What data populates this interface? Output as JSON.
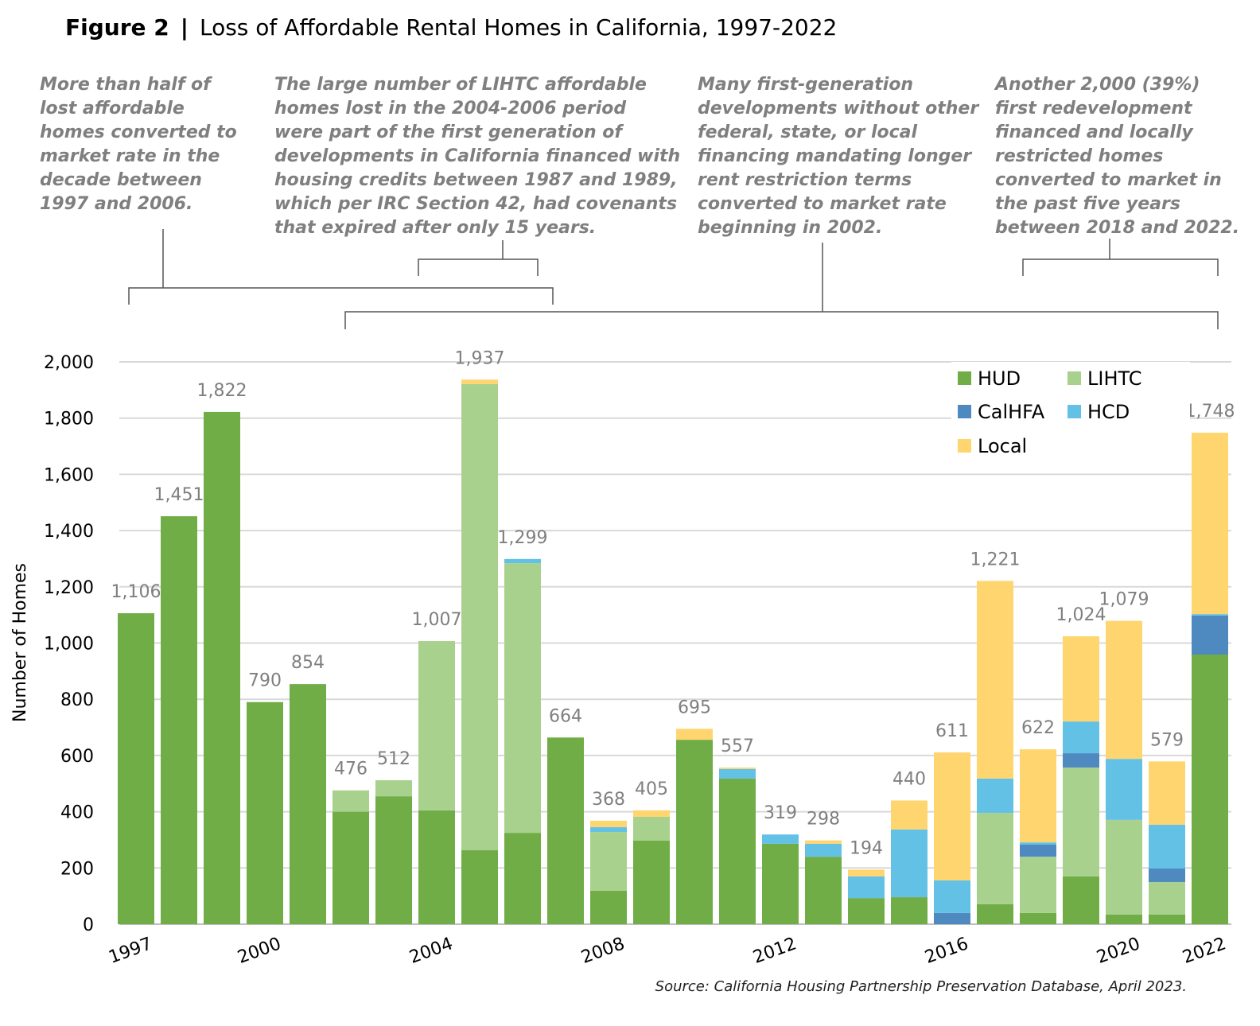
{
  "title": {
    "figure": "Figure 2",
    "separator": "|",
    "text": "Loss of Affordable Rental Homes in California, 1997-2022"
  },
  "annotations": [
    {
      "lines": [
        "More than half of",
        "lost affordable",
        "homes converted to",
        "market rate in the",
        "decade between",
        "1997 and 2006."
      ]
    },
    {
      "lines": [
        "The large number of LIHTC affordable",
        "homes lost in the 2004-2006 period",
        "were part of the first generation of",
        "developments in California financed with",
        "housing credits between 1987 and 1989,",
        "which per IRC Section 42, had covenants",
        "that expired after only 15 years."
      ]
    },
    {
      "lines": [
        "Many first-generation",
        "developments without other",
        "federal, state, or local",
        "financing mandating longer",
        "rent restriction terms",
        "converted to market rate",
        "beginning in 2002."
      ]
    },
    {
      "lines": [
        "Another 2,000 (39%)",
        "first redevelopment",
        "financed and locally",
        "restricted homes",
        "converted to market in",
        "the past five years",
        "between 2018 and 2022."
      ]
    }
  ],
  "source": "Source: California Housing Partnership Preservation Database, April 2023.",
  "chart_data": {
    "type": "bar",
    "stacked": true,
    "ylabel": "Number of Homes",
    "xlabel": "",
    "ylim": [
      0,
      2000
    ],
    "yticks": [
      "0",
      "200",
      "400",
      "600",
      "800",
      "1,000",
      "1,200",
      "1,400",
      "1,600",
      "1,800",
      "2,000"
    ],
    "grid": true,
    "legend_position": "top-right",
    "categories": [
      1997,
      1998,
      1999,
      2000,
      2001,
      2002,
      2003,
      2004,
      2005,
      2006,
      2007,
      2008,
      2009,
      2010,
      2011,
      2012,
      2013,
      2014,
      2015,
      2016,
      2017,
      2018,
      2019,
      2020,
      2021,
      2022
    ],
    "xtick_labels": [
      "1997",
      "2000",
      "2004",
      "2008",
      "2012",
      "2016",
      "2020",
      "2022"
    ],
    "totals": [
      "1,106",
      "1,451",
      "1,822",
      "790",
      "854",
      "476",
      "512",
      "1,007",
      "1,937",
      "1,299",
      "664",
      "368",
      "405",
      "695",
      "557",
      "319",
      "298",
      "194",
      "440",
      "611",
      "1,221",
      "622",
      "1,024",
      "1,079",
      "579",
      "1,748"
    ],
    "series": [
      {
        "name": "HUD",
        "color": "#70ad47",
        "values": [
          1106,
          1451,
          1822,
          790,
          854,
          400,
          455,
          405,
          263,
          325,
          664,
          119,
          297,
          656,
          518,
          286,
          240,
          93,
          96,
          0,
          71,
          40,
          170,
          34,
          34,
          959
        ]
      },
      {
        "name": "LIHTC",
        "color": "#a9d18e",
        "values": [
          0,
          0,
          0,
          0,
          0,
          76,
          57,
          602,
          1658,
          959,
          0,
          209,
          85,
          0,
          0,
          0,
          0,
          0,
          0,
          0,
          325,
          200,
          387,
          337,
          116,
          0
        ]
      },
      {
        "name": "CalHFA",
        "color": "#4e8ac0",
        "values": [
          0,
          0,
          0,
          0,
          0,
          0,
          0,
          0,
          0,
          0,
          0,
          0,
          0,
          0,
          0,
          0,
          0,
          0,
          0,
          40,
          0,
          43,
          51,
          0,
          48,
          139
        ]
      },
      {
        "name": "HCD",
        "color": "#63c1e5",
        "values": [
          0,
          0,
          0,
          0,
          0,
          0,
          0,
          0,
          0,
          15,
          0,
          17,
          0,
          0,
          34,
          33,
          46,
          77,
          241,
          116,
          122,
          8,
          113,
          217,
          156,
          5
        ]
      },
      {
        "name": "Local",
        "color": "#ffd56f",
        "values": [
          0,
          0,
          0,
          0,
          0,
          0,
          0,
          0,
          16,
          0,
          0,
          23,
          23,
          39,
          5,
          0,
          12,
          24,
          103,
          455,
          703,
          331,
          303,
          491,
          225,
          645
        ]
      }
    ]
  }
}
